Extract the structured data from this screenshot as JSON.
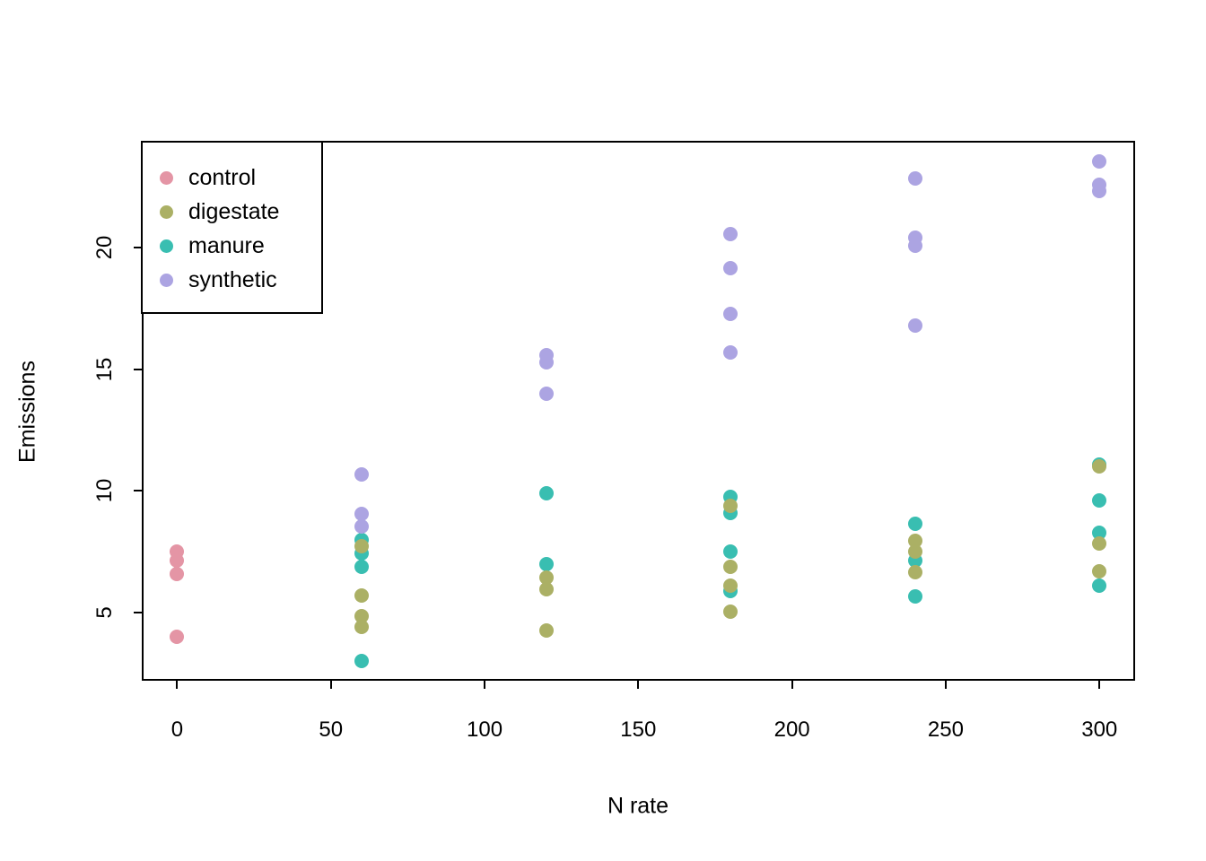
{
  "chart_data": {
    "type": "scatter",
    "title": "",
    "xlabel": "N rate",
    "ylabel": "Emissions",
    "xlim": [
      -11.5,
      311.6
    ],
    "ylim": [
      2.2,
      24.4
    ],
    "x_ticks": [
      0,
      50,
      100,
      150,
      200,
      250,
      300
    ],
    "y_ticks": [
      5,
      10,
      15,
      20
    ],
    "grid": false,
    "legend_position": "top-left",
    "point_shape": "filled-circle",
    "series": [
      {
        "name": "control",
        "color": "#E495A5",
        "points": [
          [
            0,
            7.5
          ],
          [
            0,
            7.15
          ],
          [
            0,
            6.6
          ],
          [
            0,
            4.0
          ]
        ]
      },
      {
        "name": "digestate",
        "color": "#ABB065",
        "points": [
          [
            60,
            7.75
          ],
          [
            60,
            5.7
          ],
          [
            60,
            4.85
          ],
          [
            60,
            4.4
          ],
          [
            120,
            6.45
          ],
          [
            120,
            5.95
          ],
          [
            120,
            4.25
          ],
          [
            180,
            9.4
          ],
          [
            180,
            6.9
          ],
          [
            180,
            6.1
          ],
          [
            180,
            5.05
          ],
          [
            240,
            7.95
          ],
          [
            240,
            7.5
          ],
          [
            240,
            6.65
          ],
          [
            300,
            11.0
          ],
          [
            300,
            7.85
          ],
          [
            300,
            6.7
          ]
        ]
      },
      {
        "name": "manure",
        "color": "#39BEB1",
        "points": [
          [
            60,
            8.0
          ],
          [
            60,
            7.45
          ],
          [
            60,
            6.9
          ],
          [
            60,
            3.0
          ],
          [
            120,
            9.9
          ],
          [
            120,
            7.0
          ],
          [
            180,
            9.75
          ],
          [
            180,
            9.1
          ],
          [
            180,
            7.5
          ],
          [
            180,
            5.9
          ],
          [
            240,
            8.65
          ],
          [
            240,
            7.15
          ],
          [
            240,
            5.65
          ],
          [
            300,
            11.1
          ],
          [
            300,
            9.6
          ],
          [
            300,
            8.3
          ],
          [
            300,
            6.1
          ]
        ]
      },
      {
        "name": "synthetic",
        "color": "#ACA4E2",
        "points": [
          [
            60,
            10.7
          ],
          [
            60,
            9.05
          ],
          [
            60,
            8.55
          ],
          [
            120,
            15.6
          ],
          [
            120,
            15.3
          ],
          [
            120,
            14.0
          ],
          [
            180,
            20.55
          ],
          [
            180,
            19.15
          ],
          [
            180,
            17.3
          ],
          [
            180,
            15.7
          ],
          [
            240,
            22.85
          ],
          [
            240,
            20.4
          ],
          [
            240,
            20.1
          ],
          [
            240,
            16.8
          ],
          [
            300,
            23.55
          ],
          [
            300,
            22.6
          ],
          [
            300,
            22.35
          ]
        ]
      }
    ]
  }
}
